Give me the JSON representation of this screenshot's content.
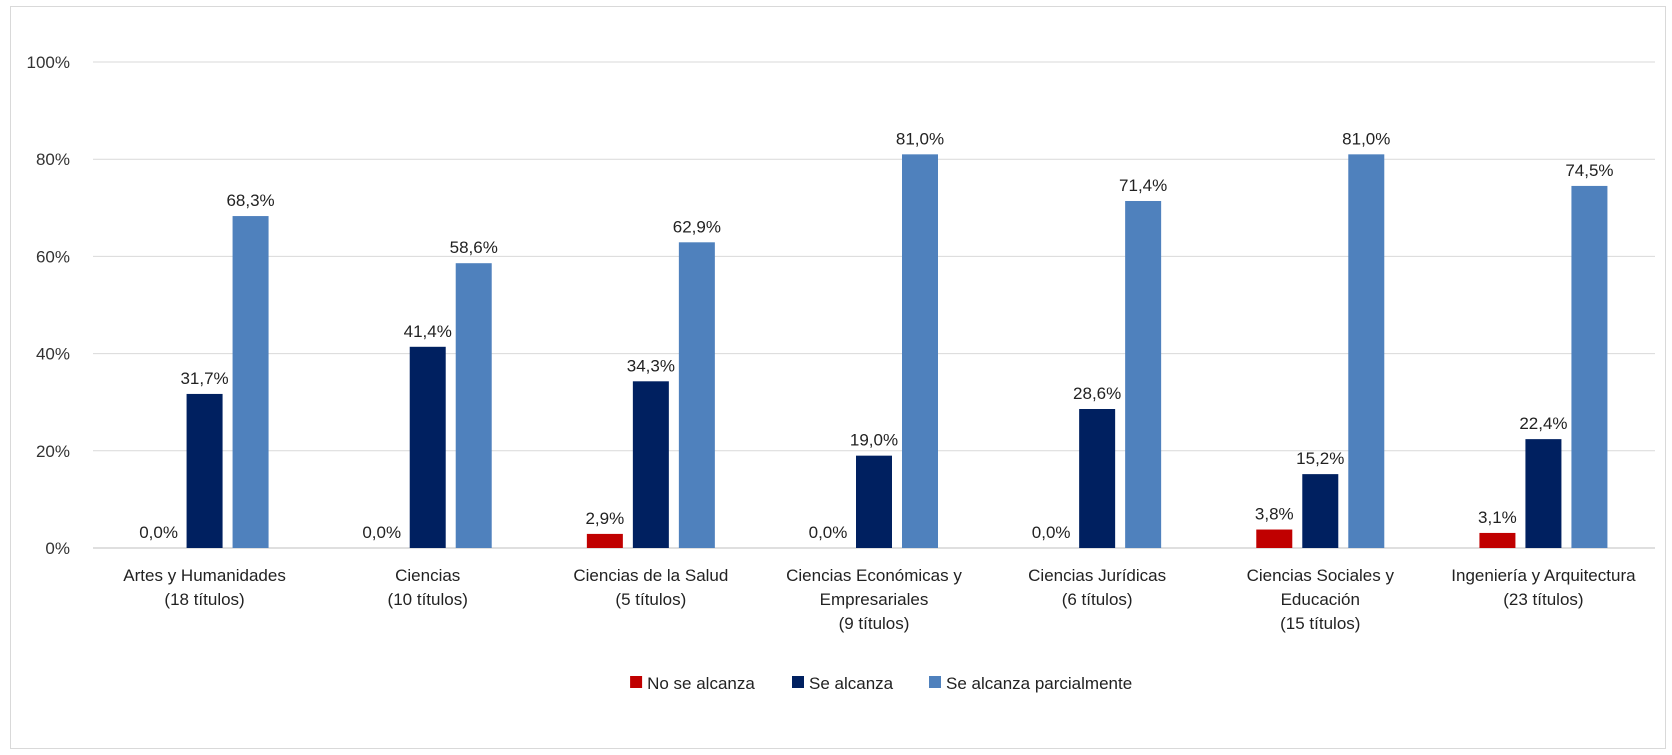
{
  "chart_data": {
    "type": "bar",
    "title": "",
    "xlabel": "",
    "ylabel": "",
    "ylim": [
      0,
      100
    ],
    "y_ticks": [
      "0%",
      "20%",
      "40%",
      "60%",
      "80%",
      "100%"
    ],
    "grid": true,
    "legend_position": "bottom",
    "categories": [
      [
        "Artes y Humanidades",
        "(18 títulos)"
      ],
      [
        "Ciencias",
        "(10 títulos)"
      ],
      [
        "Ciencias de la Salud",
        "(5 títulos)"
      ],
      [
        "Ciencias Económicas y",
        "Empresariales",
        "(9 títulos)"
      ],
      [
        "Ciencias Jurídicas",
        "(6 títulos)"
      ],
      [
        "Ciencias Sociales y",
        "Educación",
        "(15 títulos)"
      ],
      [
        "Ingeniería y Arquitectura",
        "(23 títulos)"
      ]
    ],
    "series": [
      {
        "name": "No se alcanza",
        "color": "#c00000",
        "values": [
          0.0,
          0.0,
          2.9,
          0.0,
          0.0,
          3.8,
          3.1
        ],
        "labels": [
          "0,0%",
          "0,0%",
          "2,9%",
          "0,0%",
          "0,0%",
          "3,8%",
          "3,1%"
        ]
      },
      {
        "name": "Se alcanza",
        "color": "#002060",
        "values": [
          31.7,
          41.4,
          34.3,
          19.0,
          28.6,
          15.2,
          22.4
        ],
        "labels": [
          "31,7%",
          "41,4%",
          "34,3%",
          "19,0%",
          "28,6%",
          "15,2%",
          "22,4%"
        ]
      },
      {
        "name": "Se alcanza parcialmente",
        "color": "#4f81bd",
        "values": [
          68.3,
          58.6,
          62.9,
          81.0,
          71.4,
          81.0,
          74.5
        ],
        "labels": [
          "68,3%",
          "58,6%",
          "62,9%",
          "81,0%",
          "71,4%",
          "81,0%",
          "74,5%"
        ]
      }
    ]
  }
}
